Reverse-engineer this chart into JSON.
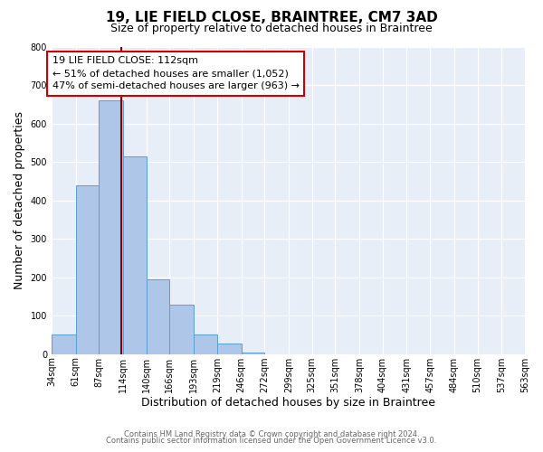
{
  "title": "19, LIE FIELD CLOSE, BRAINTREE, CM7 3AD",
  "subtitle": "Size of property relative to detached houses in Braintree",
  "xlabel": "Distribution of detached houses by size in Braintree",
  "ylabel": "Number of detached properties",
  "bin_edges": [
    34,
    61,
    87,
    114,
    140,
    166,
    193,
    219,
    246,
    272,
    299,
    325,
    351,
    378,
    404,
    431,
    457,
    484,
    510,
    537,
    563
  ],
  "bin_counts": [
    50,
    440,
    660,
    515,
    195,
    128,
    50,
    27,
    5,
    0,
    0,
    0,
    0,
    0,
    0,
    0,
    0,
    0,
    0,
    0
  ],
  "bar_color": "#aec6e8",
  "bar_edge_color": "#5a9fd4",
  "vline_x": 112,
  "vline_color": "#8b0000",
  "annotation_line1": "19 LIE FIELD CLOSE: 112sqm",
  "annotation_line2": "← 51% of detached houses are smaller (1,052)",
  "annotation_line3": "47% of semi-detached houses are larger (963) →",
  "annotation_box_facecolor": "#ffffff",
  "annotation_box_edgecolor": "#cc0000",
  "ylim": [
    0,
    800
  ],
  "tick_labels": [
    "34sqm",
    "61sqm",
    "87sqm",
    "114sqm",
    "140sqm",
    "166sqm",
    "193sqm",
    "219sqm",
    "246sqm",
    "272sqm",
    "299sqm",
    "325sqm",
    "351sqm",
    "378sqm",
    "404sqm",
    "431sqm",
    "457sqm",
    "484sqm",
    "510sqm",
    "537sqm",
    "563sqm"
  ],
  "ytick_labels": [
    "0",
    "100",
    "200",
    "300",
    "400",
    "500",
    "600",
    "700",
    "800"
  ],
  "ytick_values": [
    0,
    100,
    200,
    300,
    400,
    500,
    600,
    700,
    800
  ],
  "footer_line1": "Contains HM Land Registry data © Crown copyright and database right 2024.",
  "footer_line2": "Contains public sector information licensed under the Open Government Licence v3.0.",
  "fig_bg_color": "#ffffff",
  "plot_bg_color": "#e8eef8",
  "grid_color": "#ffffff",
  "title_fontsize": 11,
  "subtitle_fontsize": 9,
  "axis_label_fontsize": 9,
  "tick_fontsize": 7,
  "annotation_fontsize": 8,
  "footer_fontsize": 6
}
